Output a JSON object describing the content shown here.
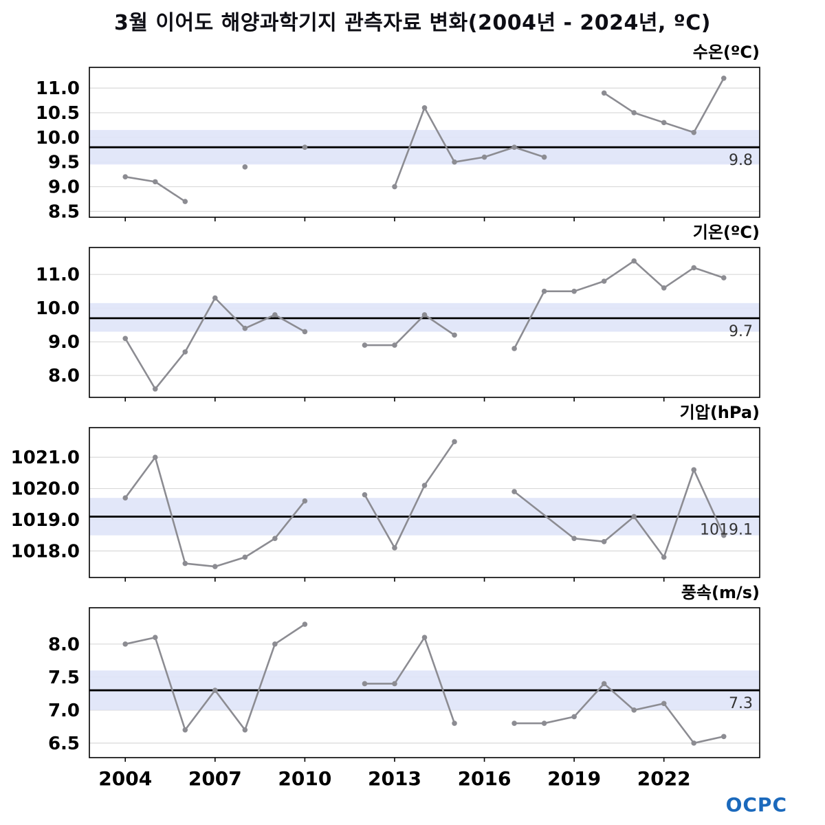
{
  "title": "3월 이어도 해양과학기지 관측자료 변화(2004년 - 2024년, ºC)",
  "logo_text": "OCPC",
  "colors": {
    "line": "#8c8c92",
    "band": "#dfe4f8",
    "mean": "#000000",
    "grid": "#d9d9d9",
    "logo": "#1b69bc"
  },
  "x_axis": {
    "ticks": [
      2004,
      2007,
      2010,
      2013,
      2016,
      2019,
      2022
    ],
    "range": [
      2002.8,
      2025.2
    ]
  },
  "chart_data": [
    {
      "type": "line",
      "title": "수온(ºC)",
      "mean": 9.8,
      "mean_label": "9.8",
      "band": [
        9.45,
        10.15
      ],
      "ylim": [
        8.38,
        11.42
      ],
      "yticks": [
        8.5,
        9.0,
        9.5,
        10.0,
        10.5,
        11.0
      ],
      "ytick_labels": [
        "8.5",
        "9.0",
        "9.5",
        "10.0",
        "10.5",
        "11.0"
      ],
      "segments": [
        {
          "x": [
            2004,
            2005,
            2006
          ],
          "y": [
            9.2,
            9.1,
            8.7
          ]
        },
        {
          "x": [
            2008
          ],
          "y": [
            9.4
          ]
        },
        {
          "x": [
            2010
          ],
          "y": [
            9.8
          ]
        },
        {
          "x": [
            2013,
            2014,
            2015,
            2016,
            2017,
            2018
          ],
          "y": [
            9.0,
            10.6,
            9.5,
            9.6,
            9.8,
            9.6
          ]
        },
        {
          "x": [
            2020,
            2021,
            2022,
            2023,
            2024
          ],
          "y": [
            10.9,
            10.5,
            10.3,
            10.1,
            11.2
          ]
        }
      ]
    },
    {
      "type": "line",
      "title": "기온(ºC)",
      "mean": 9.7,
      "mean_label": "9.7",
      "band": [
        9.3,
        10.15
      ],
      "ylim": [
        7.35,
        11.8
      ],
      "yticks": [
        8.0,
        9.0,
        10.0,
        11.0
      ],
      "ytick_labels": [
        "8.0",
        "9.0",
        "10.0",
        "11.0"
      ],
      "segments": [
        {
          "x": [
            2004,
            2005,
            2006,
            2007,
            2008,
            2009,
            2010
          ],
          "y": [
            9.1,
            7.6,
            8.7,
            10.3,
            9.4,
            9.8,
            9.3
          ]
        },
        {
          "x": [
            2012,
            2013,
            2014,
            2015
          ],
          "y": [
            8.9,
            8.9,
            9.8,
            9.2
          ]
        },
        {
          "x": [
            2017,
            2018,
            2019,
            2020,
            2021,
            2022,
            2023,
            2024
          ],
          "y": [
            8.8,
            10.5,
            10.5,
            10.8,
            11.4,
            10.6,
            11.2,
            10.9
          ]
        }
      ]
    },
    {
      "type": "line",
      "title": "기압(hPa)",
      "mean": 1019.1,
      "mean_label": "1019.1",
      "band": [
        1018.5,
        1019.7
      ],
      "ylim": [
        1017.15,
        1021.95
      ],
      "yticks": [
        1018.0,
        1019.0,
        1020.0,
        1021.0
      ],
      "ytick_labels": [
        "1018.0",
        "1019.0",
        "1020.0",
        "1021.0"
      ],
      "segments": [
        {
          "x": [
            2004,
            2005,
            2006,
            2007,
            2008,
            2009,
            2010
          ],
          "y": [
            1019.7,
            1021.0,
            1017.6,
            1017.5,
            1017.8,
            1018.4,
            1019.6
          ]
        },
        {
          "x": [
            2012,
            2013,
            2014,
            2015
          ],
          "y": [
            1019.8,
            1018.1,
            1020.1,
            1021.5
          ]
        },
        {
          "x": [
            2017,
            2019,
            2020,
            2021,
            2022,
            2023,
            2024
          ],
          "y": [
            1019.9,
            1018.4,
            1018.3,
            1019.1,
            1017.8,
            1020.6,
            1018.5
          ]
        }
      ]
    },
    {
      "type": "line",
      "title": "풍속(m/s)",
      "mean": 7.3,
      "mean_label": "7.3",
      "band": [
        7.0,
        7.6
      ],
      "ylim": [
        6.28,
        8.55
      ],
      "yticks": [
        6.5,
        7.0,
        7.5,
        8.0
      ],
      "ytick_labels": [
        "6.5",
        "7.0",
        "7.5",
        "8.0"
      ],
      "segments": [
        {
          "x": [
            2004,
            2005,
            2006,
            2007,
            2008,
            2009,
            2010
          ],
          "y": [
            8.0,
            8.1,
            6.7,
            7.3,
            6.7,
            8.0,
            8.3
          ]
        },
        {
          "x": [
            2012,
            2013,
            2014,
            2015
          ],
          "y": [
            7.4,
            7.4,
            8.1,
            6.8
          ]
        },
        {
          "x": [
            2017,
            2018,
            2019,
            2020,
            2021,
            2022,
            2023,
            2024
          ],
          "y": [
            6.8,
            6.8,
            6.9,
            7.4,
            7.0,
            7.1,
            6.5,
            6.6
          ]
        }
      ]
    }
  ]
}
